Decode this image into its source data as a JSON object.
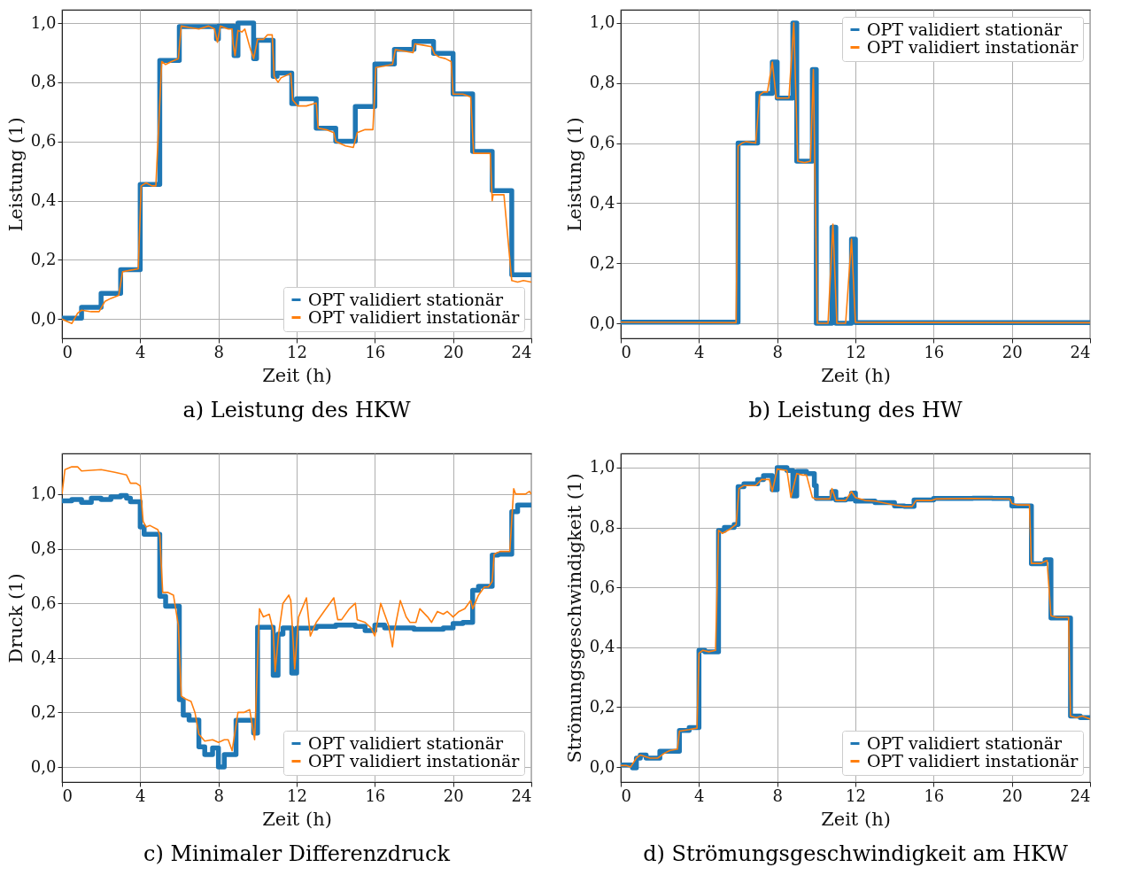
{
  "chart_data": [
    {
      "type": "line",
      "title": "a) Leistung des HKW",
      "xlabel": "Zeit (h)",
      "ylabel": "Leistung (1)",
      "xlim": [
        0,
        24
      ],
      "xticks": [
        0,
        4,
        8,
        12,
        16,
        20,
        24
      ],
      "ylim": [
        -0.065,
        1.045
      ],
      "yticks": [
        {
          "value": 0,
          "label": "0,0"
        },
        {
          "value": 0.2,
          "label": "0,2"
        },
        {
          "value": 0.4,
          "label": "0,4"
        },
        {
          "value": 0.6,
          "label": "0,6"
        },
        {
          "value": 0.8,
          "label": "0,8"
        },
        {
          "value": 1,
          "label": "1,0"
        }
      ],
      "grid": true,
      "legend": "bottom right",
      "series": [
        {
          "name": "OPT validiert stationär",
          "color": "#1f77b4",
          "type": "step",
          "x": [
            0,
            1,
            2,
            3,
            4,
            5,
            6,
            7.9,
            8,
            8.8,
            9,
            9.8,
            9.95,
            10.8,
            11,
            11.75,
            12,
            13,
            14,
            15,
            16,
            17,
            18,
            19,
            20,
            21,
            22,
            23,
            24
          ],
          "values": [
            0.003,
            0.04,
            0.087,
            0.167,
            0.455,
            0.874,
            0.988,
            0.946,
            0.99,
            0.89,
            1.0,
            0.88,
            0.942,
            0.82,
            0.831,
            0.728,
            0.744,
            0.645,
            0.601,
            0.718,
            0.862,
            0.911,
            0.938,
            0.898,
            0.761,
            0.566,
            0.434,
            0.15,
            0.15
          ]
        },
        {
          "name": "OPT validiert instationär",
          "color": "#ff7f0e",
          "type": "line",
          "x": [
            0,
            0.5,
            0.8,
            1.0,
            1.5,
            1.9,
            2.2,
            2.5,
            2.9,
            3.1,
            3.5,
            3.9,
            4.05,
            4.3,
            4.6,
            4.8,
            5.1,
            5.3,
            5.6,
            5.95,
            6.1,
            6.5,
            7.0,
            7.5,
            7.8,
            7.95,
            8.1,
            8.5,
            8.7,
            8.75,
            8.85,
            9.0,
            9.2,
            9.35,
            9.6,
            9.8,
            10.0,
            10.3,
            10.5,
            10.75,
            10.85,
            11.05,
            11.2,
            11.7,
            11.8,
            12.05,
            12.5,
            13.0,
            13.1,
            13.5,
            13.9,
            14.0,
            14.5,
            14.9,
            15.1,
            15.5,
            15.9,
            16.05,
            16.5,
            16.9,
            17.05,
            17.5,
            17.95,
            18.05,
            18.5,
            18.9,
            19.05,
            19.3,
            19.6,
            19.9,
            20.0,
            20.5,
            20.9,
            21.05,
            21.5,
            21.9,
            22.0,
            22.05,
            22.3,
            22.6,
            23.0,
            23.3,
            23.6,
            24
          ],
          "values": [
            0.0,
            -0.015,
            0.02,
            0.03,
            0.025,
            0.025,
            0.06,
            0.07,
            0.08,
            0.16,
            0.165,
            0.17,
            0.45,
            0.46,
            0.45,
            0.45,
            0.87,
            0.86,
            0.87,
            0.88,
            0.99,
            0.985,
            0.98,
            0.99,
            0.98,
            0.935,
            0.99,
            0.98,
            0.98,
            0.93,
            0.89,
            0.975,
            0.97,
            0.98,
            0.92,
            0.88,
            0.945,
            0.945,
            0.96,
            0.96,
            0.82,
            0.8,
            0.815,
            0.83,
            0.74,
            0.72,
            0.72,
            0.73,
            0.645,
            0.64,
            0.63,
            0.6,
            0.585,
            0.58,
            0.63,
            0.64,
            0.64,
            0.85,
            0.855,
            0.86,
            0.91,
            0.905,
            0.9,
            0.93,
            0.925,
            0.92,
            0.895,
            0.885,
            0.88,
            0.87,
            0.76,
            0.76,
            0.75,
            0.56,
            0.56,
            0.56,
            0.4,
            0.42,
            0.42,
            0.42,
            0.13,
            0.125,
            0.13,
            0.125
          ]
        }
      ]
    },
    {
      "type": "line",
      "title": "b) Leistung des HW",
      "xlabel": "Zeit (h)",
      "ylabel": "Leistung (1)",
      "xlim": [
        0,
        24
      ],
      "xticks": [
        0,
        4,
        8,
        12,
        16,
        20,
        24
      ],
      "ylim": [
        -0.05,
        1.044
      ],
      "yticks": [
        {
          "value": 0,
          "label": "0,0"
        },
        {
          "value": 0.2,
          "label": "0,2"
        },
        {
          "value": 0.4,
          "label": "0,4"
        },
        {
          "value": 0.6,
          "label": "0,6"
        },
        {
          "value": 0.8,
          "label": "0,8"
        },
        {
          "value": 1,
          "label": "1,0"
        }
      ],
      "grid": true,
      "legend": "top right",
      "series": [
        {
          "name": "OPT validiert stationär",
          "color": "#1f77b4",
          "type": "step",
          "x": [
            0,
            6,
            7,
            7.75,
            8,
            8.8,
            9,
            9.8,
            10,
            10.8,
            11,
            11.8,
            12,
            24
          ],
          "values": [
            0.004,
            0.6,
            0.765,
            0.87,
            0.75,
            1.0,
            0.54,
            0.845,
            0,
            0.32,
            0,
            0.28,
            0.002,
            0.002
          ]
        },
        {
          "name": "OPT validiert instationär",
          "color": "#ff7f0e",
          "type": "line",
          "x": [
            0,
            5.9,
            6.0,
            6.2,
            6.4,
            6.9,
            7.1,
            7.3,
            7.5,
            7.75,
            7.95,
            8.4,
            8.6,
            8.85,
            9.05,
            9.4,
            9.7,
            9.85,
            10.05,
            10.6,
            10.85,
            11.05,
            11.5,
            11.8,
            12.0,
            24
          ],
          "values": [
            0.004,
            0.002,
            0.59,
            0.6,
            0.605,
            0.6,
            0.76,
            0.77,
            0.77,
            0.87,
            0.75,
            0.75,
            0.75,
            1.0,
            0.54,
            0.535,
            0.54,
            0.845,
            0.0,
            0.0,
            0.33,
            0.0,
            0.0,
            0.28,
            0.003,
            0.002
          ]
        }
      ]
    },
    {
      "type": "line",
      "title": "c) Minimaler Differenzdruck",
      "xlabel": "Zeit (h)",
      "ylabel": "Druck (1)",
      "xlim": [
        0,
        24
      ],
      "xticks": [
        0,
        4,
        8,
        12,
        16,
        20,
        24
      ],
      "ylim": [
        -0.055,
        1.149
      ],
      "yticks": [
        {
          "value": 0,
          "label": "0,0"
        },
        {
          "value": 0.2,
          "label": "0,2"
        },
        {
          "value": 0.4,
          "label": "0,4"
        },
        {
          "value": 0.6,
          "label": "0,6"
        },
        {
          "value": 0.8,
          "label": "0,8"
        },
        {
          "value": 1,
          "label": "1,0"
        }
      ],
      "grid": true,
      "legend": "bottom right",
      "series": [
        {
          "name": "OPT validiert stationär",
          "color": "#1f77b4",
          "type": "step",
          "x": [
            0,
            0.5,
            1,
            1.5,
            2,
            2.5,
            3,
            3.3,
            3.5,
            4,
            4.2,
            5,
            5.3,
            6,
            6.2,
            6.5,
            7,
            7.3,
            7.7,
            8,
            8.3,
            8.9,
            9.8,
            10,
            10.8,
            11.05,
            11.3,
            11.75,
            12,
            13,
            14,
            15,
            15.5,
            16,
            16.5,
            17,
            18,
            19,
            19.5,
            20,
            20.5,
            21,
            21.3,
            22,
            22.3,
            23,
            23.3,
            23.6,
            24
          ],
          "values": [
            0.975,
            0.98,
            0.97,
            0.985,
            0.98,
            0.99,
            0.995,
            0.985,
            0.972,
            0.88,
            0.853,
            0.626,
            0.589,
            0.247,
            0.19,
            0.172,
            0.074,
            0.046,
            0.07,
            0.0,
            0.046,
            0.171,
            0.124,
            0.512,
            0.336,
            0.487,
            0.51,
            0.344,
            0.509,
            0.515,
            0.52,
            0.515,
            0.5,
            0.52,
            0.51,
            0.51,
            0.505,
            0.505,
            0.51,
            0.526,
            0.53,
            0.648,
            0.662,
            0.777,
            0.78,
            0.936,
            0.96,
            0.96,
            0.955
          ]
        },
        {
          "name": "OPT validiert instationär",
          "color": "#ff7f0e",
          "type": "line",
          "x": [
            0,
            0.15,
            0.5,
            0.8,
            1.0,
            2.0,
            2.7,
            3.3,
            3.5,
            3.8,
            4.0,
            4.15,
            4.3,
            4.5,
            4.9,
            5.0,
            5.15,
            5.4,
            5.7,
            5.95,
            6.1,
            6.3,
            6.6,
            6.8,
            7.0,
            7.3,
            7.7,
            8.0,
            8.3,
            8.5,
            8.7,
            9.0,
            9.3,
            9.6,
            9.85,
            10.1,
            10.3,
            10.6,
            10.8,
            10.9,
            11.1,
            11.3,
            11.6,
            11.7,
            11.9,
            12.1,
            12.5,
            12.7,
            13.0,
            13.5,
            13.9,
            14.1,
            14.3,
            14.7,
            15.0,
            15.1,
            15.5,
            15.8,
            16.0,
            16.3,
            16.5,
            16.7,
            16.9,
            17.0,
            17.3,
            17.6,
            17.8,
            18.1,
            18.3,
            18.7,
            18.9,
            19.2,
            19.5,
            19.7,
            20.0,
            20.3,
            20.6,
            20.9,
            21.0,
            21.3,
            21.6,
            21.8,
            22.0,
            22.1,
            22.4,
            22.9,
            23.1,
            23.2,
            23.4,
            23.7,
            23.9,
            24
          ],
          "values": [
            1.0,
            1.09,
            1.1,
            1.1,
            1.085,
            1.09,
            1.08,
            1.07,
            1.04,
            1.04,
            1.03,
            0.9,
            0.88,
            0.885,
            0.87,
            0.85,
            0.64,
            0.64,
            0.63,
            0.52,
            0.26,
            0.25,
            0.24,
            0.2,
            0.12,
            0.095,
            0.1,
            0.09,
            0.1,
            0.1,
            0.06,
            0.2,
            0.2,
            0.21,
            0.1,
            0.58,
            0.55,
            0.56,
            0.5,
            0.35,
            0.5,
            0.6,
            0.63,
            0.61,
            0.36,
            0.55,
            0.62,
            0.48,
            0.53,
            0.58,
            0.62,
            0.54,
            0.54,
            0.58,
            0.6,
            0.54,
            0.53,
            0.51,
            0.48,
            0.6,
            0.56,
            0.52,
            0.44,
            0.5,
            0.61,
            0.55,
            0.53,
            0.53,
            0.58,
            0.55,
            0.53,
            0.57,
            0.56,
            0.57,
            0.55,
            0.57,
            0.58,
            0.61,
            0.58,
            0.63,
            0.66,
            0.66,
            0.68,
            0.78,
            0.79,
            0.79,
            1.02,
            1.0,
            1.0,
            1.0,
            1.01,
            1.0
          ]
        }
      ]
    },
    {
      "type": "line",
      "title": "d) Strömungsgeschwindigkeit am HKW",
      "xlabel": "Zeit (h)",
      "ylabel": "Strömungsgeschwindigkeit (1)",
      "xlim": [
        0,
        24
      ],
      "xticks": [
        0,
        4,
        8,
        12,
        16,
        20,
        24
      ],
      "ylim": [
        -0.05,
        1.047
      ],
      "yticks": [
        {
          "value": 0,
          "label": "0,0"
        },
        {
          "value": 0.2,
          "label": "0,2"
        },
        {
          "value": 0.4,
          "label": "0,4"
        },
        {
          "value": 0.6,
          "label": "0,6"
        },
        {
          "value": 0.8,
          "label": "0,8"
        },
        {
          "value": 1,
          "label": "1,0"
        }
      ],
      "grid": true,
      "legend": "bottom right",
      "series": [
        {
          "name": "OPT validiert stationär",
          "color": "#1f77b4",
          "type": "step",
          "x": [
            0,
            0.6,
            0.8,
            1,
            1.3,
            2,
            3,
            3.5,
            4,
            4.3,
            5,
            5.3,
            5.8,
            6,
            6.3,
            7,
            7.3,
            7.75,
            8,
            8.5,
            8.8,
            9,
            9.5,
            9.9,
            10,
            10.8,
            11,
            11.5,
            11.8,
            12,
            13,
            14,
            14.5,
            15,
            16,
            17,
            18,
            19,
            20,
            21,
            21.7,
            22,
            23,
            23.5,
            24
          ],
          "values": [
            0.007,
            -0.003,
            0.03,
            0.04,
            0.03,
            0.053,
            0.122,
            0.132,
            0.39,
            0.385,
            0.79,
            0.8,
            0.81,
            0.936,
            0.946,
            0.96,
            0.973,
            0.926,
            1.0,
            0.99,
            0.905,
            0.987,
            0.98,
            0.94,
            0.897,
            0.92,
            0.892,
            0.895,
            0.915,
            0.888,
            0.883,
            0.872,
            0.87,
            0.892,
            0.897,
            0.897,
            0.898,
            0.897,
            0.872,
            0.679,
            0.692,
            0.498,
            0.17,
            0.165,
            0.16
          ]
        },
        {
          "name": "OPT validiert instationär",
          "color": "#ff7f0e",
          "type": "line",
          "x": [
            0,
            0.3,
            0.5,
            0.8,
            1.0,
            1.5,
            1.9,
            2.2,
            2.5,
            2.9,
            3.0,
            3.5,
            3.9,
            4.0,
            4.2,
            4.5,
            4.85,
            5.0,
            5.2,
            5.6,
            5.9,
            6.05,
            6.3,
            6.9,
            7.2,
            7.6,
            7.75,
            8.0,
            8.5,
            8.7,
            9.0,
            9.3,
            9.5,
            9.8,
            10.0,
            10.7,
            10.8,
            11.0,
            11.5,
            11.8,
            12.0,
            12.5,
            13,
            14.0,
            14.5,
            14.9,
            15.1,
            15.9,
            16.1,
            18,
            19.0,
            19.9,
            20.0,
            20.3,
            20.9,
            21.0,
            21.5,
            21.8,
            22.0,
            22.3,
            22.9,
            23.0,
            23.3,
            23.6,
            24
          ],
          "values": [
            0.005,
            0.005,
            0.0,
            0.03,
            0.04,
            0.03,
            0.03,
            0.045,
            0.055,
            0.06,
            0.12,
            0.125,
            0.13,
            0.38,
            0.39,
            0.385,
            0.39,
            0.79,
            0.78,
            0.795,
            0.81,
            0.93,
            0.94,
            0.94,
            0.96,
            0.96,
            0.92,
            0.995,
            0.99,
            0.9,
            0.98,
            0.975,
            0.975,
            0.9,
            0.895,
            0.895,
            0.93,
            0.89,
            0.89,
            0.92,
            0.9,
            0.89,
            0.888,
            0.875,
            0.87,
            0.87,
            0.89,
            0.89,
            0.895,
            0.897,
            0.896,
            0.895,
            0.88,
            0.875,
            0.875,
            0.68,
            0.68,
            0.69,
            0.505,
            0.5,
            0.5,
            0.17,
            0.165,
            0.17,
            0.16
          ]
        }
      ]
    }
  ]
}
